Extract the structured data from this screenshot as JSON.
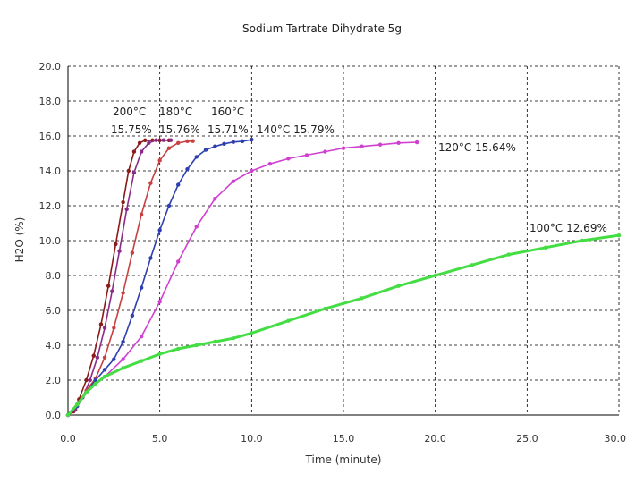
{
  "chart_data": {
    "type": "line",
    "title": "Sodium Tartrate Dihydrate 5g",
    "xlabel": "Time (minute)",
    "ylabel": "H2O (%)",
    "xlim": [
      0,
      30
    ],
    "ylim": [
      0,
      20
    ],
    "xticks": [
      "0.0",
      "5.0",
      "10.0",
      "15.0",
      "20.0",
      "25.0",
      "30.0"
    ],
    "yticks": [
      "0.0",
      "2.0",
      "4.0",
      "6.0",
      "8.0",
      "10.0",
      "12.0",
      "14.0",
      "16.0",
      "18.0",
      "20.0"
    ],
    "grid": true,
    "series": [
      {
        "name": "200°C",
        "label": "200°C 15.75%",
        "color": "#8b1a1a",
        "x": [
          0,
          0.3,
          0.6,
          1.0,
          1.4,
          1.8,
          2.2,
          2.6,
          3.0,
          3.3,
          3.6,
          3.9,
          4.2,
          4.6,
          5.0,
          5.5
        ],
        "y": [
          0,
          0.2,
          0.9,
          2.0,
          3.4,
          5.2,
          7.4,
          9.8,
          12.2,
          14.0,
          15.1,
          15.6,
          15.75,
          15.75,
          15.75,
          15.75
        ]
      },
      {
        "name": "180°C",
        "label": "180°C 15.76%",
        "color": "#8a2b8a",
        "x": [
          0,
          0.4,
          0.8,
          1.2,
          1.6,
          2.0,
          2.4,
          2.8,
          3.2,
          3.6,
          4.0,
          4.4,
          4.8,
          5.2,
          5.6
        ],
        "y": [
          0,
          0.3,
          1.0,
          2.0,
          3.3,
          5.0,
          7.1,
          9.4,
          11.8,
          13.9,
          15.1,
          15.6,
          15.76,
          15.76,
          15.76
        ]
      },
      {
        "name": "160°C",
        "label": "160°C 15.71%",
        "color": "#c84040",
        "x": [
          0,
          0.5,
          1.0,
          1.5,
          2.0,
          2.5,
          3.0,
          3.5,
          4.0,
          4.5,
          5.0,
          5.5,
          6.0,
          6.5,
          6.8
        ],
        "y": [
          0,
          0.6,
          1.4,
          2.1,
          3.3,
          5.0,
          7.0,
          9.3,
          11.5,
          13.3,
          14.6,
          15.3,
          15.6,
          15.7,
          15.71
        ]
      },
      {
        "name": "140°C",
        "label": "140°C 15.79%",
        "color": "#2e3fb0",
        "x": [
          0,
          0.5,
          1.0,
          1.5,
          2.0,
          2.5,
          3.0,
          3.5,
          4.0,
          4.5,
          5.0,
          5.5,
          6.0,
          6.5,
          7.0,
          7.5,
          8.0,
          8.5,
          9.0,
          9.5,
          10.0
        ],
        "y": [
          0,
          0.5,
          1.3,
          2.0,
          2.6,
          3.2,
          4.2,
          5.7,
          7.3,
          9.0,
          10.6,
          12.0,
          13.2,
          14.1,
          14.8,
          15.2,
          15.4,
          15.55,
          15.65,
          15.7,
          15.79
        ]
      },
      {
        "name": "120°C",
        "label": "120°C 15.64%",
        "color": "#d040d0",
        "x": [
          0,
          0.5,
          1.0,
          2.0,
          3.0,
          4.0,
          5.0,
          6.0,
          7.0,
          8.0,
          9.0,
          10.0,
          11.0,
          12.0,
          13.0,
          14.0,
          15.0,
          16.0,
          17.0,
          18.0,
          19.0
        ],
        "y": [
          0,
          0.6,
          1.3,
          2.2,
          3.2,
          4.5,
          6.5,
          8.8,
          10.8,
          12.4,
          13.4,
          14.0,
          14.4,
          14.7,
          14.9,
          15.1,
          15.3,
          15.4,
          15.5,
          15.6,
          15.64
        ]
      },
      {
        "name": "100°C",
        "label": "100°C 12.69%",
        "color": "#44dd44",
        "x": [
          0,
          0.5,
          1.0,
          1.5,
          2.0,
          3.0,
          4.0,
          5.0,
          6.0,
          7.0,
          8.0,
          9.0,
          10.0,
          12.0,
          14.0,
          16.0,
          18.0,
          20.0,
          22.0,
          24.0,
          26.0,
          28.0,
          30.0
        ],
        "y": [
          0,
          0.6,
          1.3,
          1.8,
          2.2,
          2.7,
          3.1,
          3.5,
          3.8,
          4.0,
          4.2,
          4.4,
          4.7,
          5.4,
          6.1,
          6.7,
          7.4,
          8.0,
          8.6,
          9.2,
          9.6,
          10.0,
          10.3
        ]
      }
    ]
  },
  "annotations": {
    "a200_temp": "200°C",
    "a200_pct": "15.75%",
    "a180_temp": "180°C",
    "a180_pct": "15.76%",
    "a160_temp": "160°C",
    "a160_pct": "15.71%",
    "a140": "140°C 15.79%",
    "a120": "120°C 15.64%",
    "a100": "100°C 12.69%"
  }
}
